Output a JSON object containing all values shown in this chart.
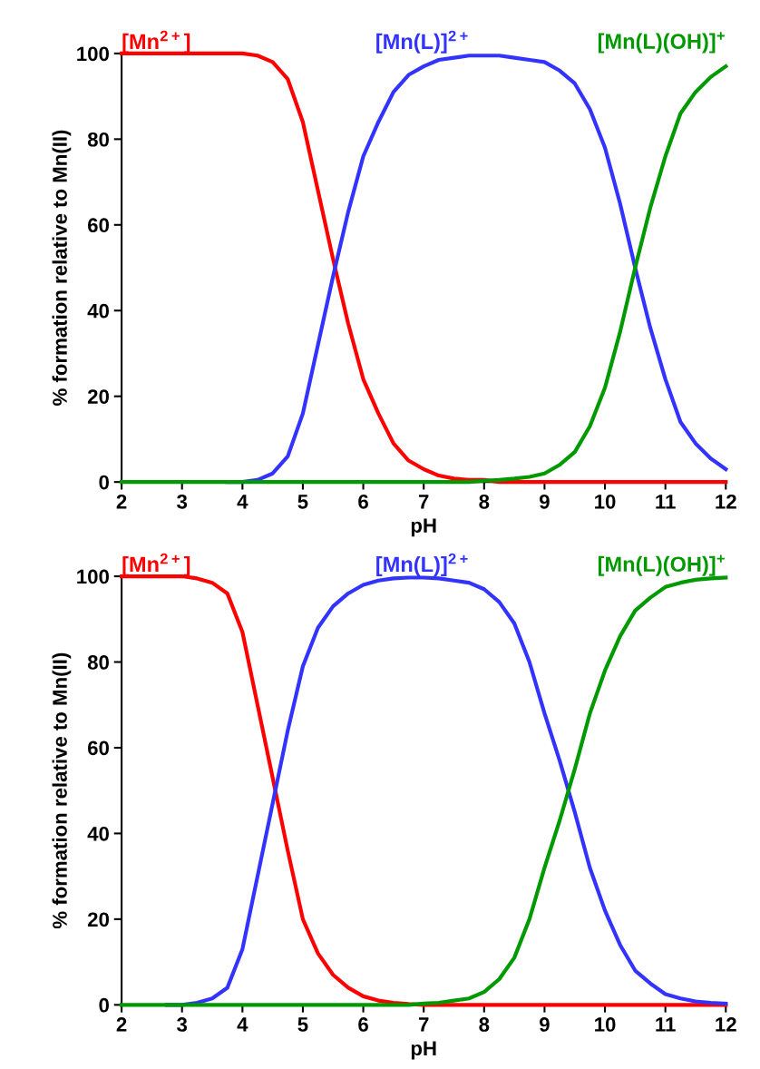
{
  "chart_data": [
    {
      "type": "line",
      "xlabel": "pH",
      "ylabel": "% formation relative to Mn(II)",
      "xlim": [
        2,
        12
      ],
      "ylim": [
        0,
        100
      ],
      "xticks": [
        2,
        3,
        4,
        5,
        6,
        7,
        8,
        9,
        10,
        11,
        12
      ],
      "yticks": [
        0,
        20,
        40,
        60,
        80,
        100
      ],
      "grid": false,
      "legend": false,
      "marker": "none",
      "line_style": "solid",
      "x": [
        2,
        2.25,
        2.5,
        2.75,
        3,
        3.25,
        3.5,
        3.75,
        4,
        4.25,
        4.5,
        4.75,
        5,
        5.25,
        5.5,
        5.75,
        6,
        6.25,
        6.5,
        6.75,
        7,
        7.25,
        7.5,
        7.75,
        8,
        8.25,
        8.5,
        8.75,
        9,
        9.25,
        9.5,
        9.75,
        10,
        10.25,
        10.5,
        10.75,
        11,
        11.25,
        11.5,
        11.75,
        12
      ],
      "series": [
        {
          "name": "[Mn$^{2+}$]",
          "color": "#ff0000",
          "values": [
            100,
            100,
            100,
            100,
            100,
            100,
            100,
            100,
            100,
            99.5,
            98,
            94,
            84,
            68,
            52,
            37,
            24,
            16,
            9,
            5,
            3,
            1.5,
            0.8,
            0.5,
            0.5,
            0,
            0,
            0,
            0,
            0,
            0,
            0,
            0,
            0,
            0,
            0,
            0,
            0,
            0,
            0,
            0
          ]
        },
        {
          "name": "[Mn(L)]$^{2+}$",
          "color": "#3333ff",
          "values": [
            null,
            null,
            null,
            null,
            null,
            null,
            null,
            0,
            0,
            0.5,
            2,
            6,
            16,
            32,
            48,
            63,
            76,
            84,
            91,
            95,
            97,
            98.5,
            99,
            99.5,
            99.5,
            99.5,
            99,
            98.5,
            98,
            96,
            93,
            87,
            78,
            65,
            50,
            36,
            24,
            14,
            9,
            5.5,
            3
          ]
        },
        {
          "name": "[Mn(L)(OH)]$^{+}$",
          "color": "#009900",
          "values": [
            0,
            0,
            0,
            0,
            0,
            0,
            0,
            0,
            0,
            0,
            0,
            0,
            0,
            0,
            0,
            0,
            0,
            0,
            0,
            0,
            0,
            0,
            0,
            0,
            0.3,
            0.5,
            0.8,
            1.2,
            2,
            4,
            7,
            13,
            22,
            35,
            50,
            64,
            76,
            86,
            91,
            94.5,
            97
          ]
        }
      ]
    },
    {
      "type": "line",
      "xlabel": "pH",
      "ylabel": "% formation relative to Mn(II)",
      "xlim": [
        2,
        12
      ],
      "ylim": [
        0,
        100
      ],
      "xticks": [
        2,
        3,
        4,
        5,
        6,
        7,
        8,
        9,
        10,
        11,
        12
      ],
      "yticks": [
        0,
        20,
        40,
        60,
        80,
        100
      ],
      "grid": false,
      "legend": false,
      "marker": "none",
      "line_style": "solid",
      "x": [
        2,
        2.25,
        2.5,
        2.75,
        3,
        3.25,
        3.5,
        3.75,
        4,
        4.25,
        4.5,
        4.75,
        5,
        5.25,
        5.5,
        5.75,
        6,
        6.25,
        6.5,
        6.75,
        7,
        7.25,
        7.5,
        7.75,
        8,
        8.25,
        8.5,
        8.75,
        9,
        9.25,
        9.5,
        9.75,
        10,
        10.25,
        10.5,
        10.75,
        11,
        11.25,
        11.5,
        11.75,
        12
      ],
      "series": [
        {
          "name": "[Mn$^{2+}$]",
          "color": "#ff0000",
          "values": [
            100,
            100,
            100,
            100,
            100,
            99.5,
            98.5,
            96,
            87,
            70,
            53,
            36,
            20,
            12,
            7,
            4,
            2,
            1,
            0.5,
            0.2,
            0,
            0,
            0,
            0,
            0,
            0,
            0,
            0,
            0,
            0,
            0,
            0,
            0,
            0,
            0,
            0,
            0,
            0,
            0,
            0,
            0
          ]
        },
        {
          "name": "[Mn(L)]$^{2+}$",
          "color": "#3333ff",
          "values": [
            null,
            null,
            null,
            0,
            0,
            0.5,
            1.5,
            4,
            13,
            30,
            47,
            64,
            79,
            88,
            93,
            96,
            98,
            99,
            99.5,
            99.7,
            99.7,
            99.5,
            99,
            98.5,
            97,
            94,
            89,
            80,
            68,
            57,
            45,
            32,
            22,
            14,
            8,
            5,
            2.5,
            1.5,
            0.8,
            0.5,
            0.3
          ]
        },
        {
          "name": "[Mn(L)(OH)]$^{+}$",
          "color": "#009900",
          "values": [
            0,
            0,
            0,
            0,
            0,
            0,
            0,
            0,
            0,
            0,
            0,
            0,
            0,
            0,
            0,
            0,
            0,
            0,
            0,
            0,
            0.3,
            0.5,
            1,
            1.5,
            3,
            6,
            11,
            20,
            32,
            43,
            55,
            68,
            78,
            86,
            92,
            95,
            97.5,
            98.5,
            99.2,
            99.5,
            99.7
          ]
        }
      ]
    }
  ]
}
